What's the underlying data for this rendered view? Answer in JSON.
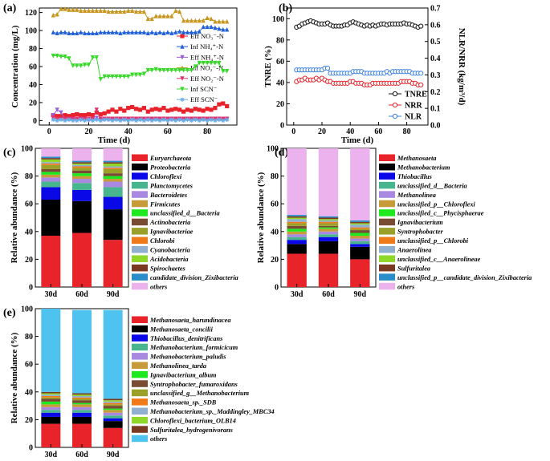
{
  "panels": {
    "a": {
      "label": "(a)",
      "type": "line",
      "xlabel": "Time (d)",
      "ylabel": "Concentration (mg/L)",
      "xlim": [
        -5,
        95
      ],
      "ylim": [
        -5,
        125
      ],
      "xticks": [
        "0",
        "20",
        "40",
        "60",
        "80"
      ],
      "yticks": [
        "0",
        "20",
        "40",
        "60",
        "80",
        "100",
        "120"
      ],
      "x": [
        2,
        4,
        6,
        8,
        10,
        12,
        14,
        16,
        18,
        20,
        22,
        24,
        26,
        28,
        30,
        32,
        34,
        36,
        38,
        40,
        42,
        44,
        46,
        48,
        50,
        52,
        54,
        56,
        58,
        60,
        62,
        64,
        66,
        68,
        70,
        72,
        74,
        76,
        78,
        80,
        82,
        84,
        86,
        88,
        90
      ],
      "series": [
        {
          "name": "Eff NO₃⁻-N",
          "color": "#e8222a",
          "marker": "square",
          "values": [
            6,
            5,
            5,
            6,
            5,
            6,
            7,
            6,
            6,
            7,
            6,
            9,
            7,
            8,
            10,
            12,
            10,
            13,
            11,
            14,
            15,
            13,
            12,
            14,
            10,
            12,
            13,
            12,
            14,
            11,
            12,
            13,
            12,
            10,
            12,
            11,
            13,
            12,
            11,
            13,
            12,
            14,
            18,
            19,
            16
          ]
        },
        {
          "name": "Inf NH₄⁺-N",
          "color": "#2060d8",
          "marker": "triangle-up",
          "values": [
            98,
            97,
            98,
            98,
            97,
            97,
            97,
            98,
            97,
            97,
            97,
            97,
            98,
            98,
            98,
            98,
            98,
            97,
            98,
            98,
            98,
            98,
            98,
            98,
            97,
            98,
            97,
            98,
            97,
            98,
            97,
            98,
            99,
            98,
            98,
            98,
            98,
            99,
            104,
            104,
            104,
            103,
            102,
            101,
            101
          ]
        },
        {
          "name": "Eff NH₄⁺-N",
          "color": "#9b5fd8",
          "marker": "triangle-down",
          "values": [
            6,
            12,
            9,
            2,
            1,
            1,
            1,
            1,
            1,
            0,
            1,
            3,
            1,
            1,
            1,
            1,
            1,
            1,
            1,
            1,
            2,
            1,
            1,
            1,
            1,
            1,
            1,
            1,
            2,
            1,
            1,
            1,
            1,
            1,
            1,
            1,
            1,
            1,
            1,
            1,
            1,
            2,
            1,
            1,
            1
          ]
        },
        {
          "name": "Inf NO₂⁻-N",
          "color": "#c8961e",
          "marker": "triangle-up",
          "values": [
            117,
            118,
            124,
            124,
            123,
            123,
            123,
            122,
            122,
            122,
            122,
            122,
            122,
            122,
            121,
            121,
            121,
            121,
            121,
            122,
            122,
            121,
            121,
            121,
            113,
            113,
            116,
            116,
            116,
            116,
            116,
            122,
            121,
            111,
            111,
            111,
            111,
            111,
            111,
            114,
            113,
            110,
            110,
            110,
            110
          ]
        },
        {
          "name": "Eff NO₂⁻-N",
          "color": "#e0306e",
          "marker": "triangle-down",
          "values": [
            3,
            2,
            2,
            2,
            2,
            2,
            2,
            2,
            2,
            2,
            2,
            12,
            2,
            2,
            2,
            2,
            2,
            2,
            2,
            2,
            2,
            2,
            2,
            2,
            2,
            2,
            2,
            2,
            2,
            2,
            2,
            2,
            2,
            2,
            2,
            2,
            2,
            2,
            2,
            2,
            2,
            2,
            2,
            2,
            2
          ]
        },
        {
          "name": "Inf SCN⁻",
          "color": "#38d82a",
          "marker": "triangle-down",
          "values": [
            72,
            72,
            71,
            71,
            69,
            61,
            61,
            61,
            62,
            62,
            70,
            70,
            46,
            49,
            49,
            49,
            49,
            49,
            49,
            49,
            51,
            51,
            51,
            52,
            56,
            56,
            57,
            56,
            56,
            56,
            56,
            56,
            56,
            56,
            56,
            56,
            60,
            64,
            64,
            64,
            64,
            64,
            64,
            55,
            55
          ]
        },
        {
          "name": "Eff SCN⁻",
          "color": "#6aaee8",
          "marker": "star",
          "values": [
            1,
            0,
            1,
            0,
            1,
            0,
            0,
            1,
            0,
            1,
            0,
            1,
            0,
            1,
            1,
            0,
            1,
            0,
            1,
            0,
            1,
            0,
            1,
            0,
            1,
            0,
            1,
            0,
            1,
            0,
            1,
            0,
            1,
            0,
            1,
            0,
            1,
            0,
            1,
            0,
            1,
            0,
            1,
            0,
            1
          ]
        }
      ]
    },
    "b": {
      "label": "(b)",
      "type": "line",
      "xlabel": "Time (d)",
      "ylabel": "TNRE (%)",
      "y2label": "NLR/NRR (kg/m³/d)",
      "xlim": [
        -5,
        95
      ],
      "ylim": [
        0,
        110
      ],
      "y2lim": [
        0,
        0.7
      ],
      "xticks": [
        "0",
        "20",
        "40",
        "60",
        "80"
      ],
      "yticks": [
        "0",
        "20",
        "40",
        "60",
        "80",
        "100"
      ],
      "y2ticks": [
        "0.0",
        "0.1",
        "0.2",
        "0.3",
        "0.4",
        "0.5",
        "0.6",
        "0.7"
      ],
      "x": [
        2,
        4,
        6,
        8,
        10,
        12,
        14,
        16,
        18,
        20,
        22,
        24,
        26,
        28,
        30,
        32,
        34,
        36,
        38,
        40,
        42,
        44,
        46,
        48,
        50,
        52,
        54,
        56,
        58,
        60,
        62,
        64,
        66,
        68,
        70,
        72,
        74,
        76,
        78,
        80,
        82,
        84,
        86,
        88,
        90
      ],
      "series": [
        {
          "name": "TNRE",
          "axis": "left",
          "color": "#111111",
          "values": [
            92,
            93,
            95,
            96,
            97,
            98,
            97,
            96,
            95,
            95,
            95,
            96,
            94,
            93,
            93,
            93,
            93,
            94,
            94,
            96,
            97,
            96,
            95,
            94,
            93,
            94,
            93,
            94,
            93,
            94,
            95,
            95,
            94,
            95,
            95,
            95,
            95,
            95,
            96,
            95,
            95,
            94,
            93,
            92,
            93
          ]
        },
        {
          "name": "NRR",
          "axis": "right",
          "color": "#e8222a",
          "values": [
            0.26,
            0.27,
            0.27,
            0.28,
            0.27,
            0.27,
            0.27,
            0.28,
            0.27,
            0.28,
            0.27,
            0.26,
            0.26,
            0.25,
            0.25,
            0.25,
            0.25,
            0.25,
            0.25,
            0.26,
            0.26,
            0.25,
            0.25,
            0.25,
            0.24,
            0.24,
            0.24,
            0.25,
            0.25,
            0.25,
            0.25,
            0.25,
            0.25,
            0.25,
            0.25,
            0.25,
            0.25,
            0.26,
            0.26,
            0.26,
            0.26,
            0.25,
            0.25,
            0.24,
            0.24
          ]
        },
        {
          "name": "NLR",
          "axis": "right",
          "color": "#3a80e0",
          "values": [
            0.33,
            0.33,
            0.33,
            0.33,
            0.33,
            0.33,
            0.33,
            0.33,
            0.33,
            0.33,
            0.34,
            0.34,
            0.31,
            0.31,
            0.31,
            0.31,
            0.31,
            0.31,
            0.31,
            0.31,
            0.32,
            0.32,
            0.32,
            0.32,
            0.31,
            0.31,
            0.31,
            0.31,
            0.31,
            0.31,
            0.31,
            0.31,
            0.32,
            0.31,
            0.32,
            0.32,
            0.32,
            0.32,
            0.32,
            0.32,
            0.32,
            0.31,
            0.31,
            0.31,
            0.31
          ]
        }
      ]
    },
    "c": {
      "label": "(c)",
      "type": "stacked-bar",
      "ylabel": "Relative abundance (%)",
      "ylim": [
        0,
        100
      ],
      "yticks": [
        "0",
        "20",
        "40",
        "60",
        "80",
        "100"
      ],
      "categories": [
        "30d",
        "60d",
        "90d"
      ],
      "series": [
        {
          "name": "Euryarchaeota",
          "color": "#e8232a",
          "values": [
            37,
            39,
            34
          ]
        },
        {
          "name": "Proteobacteria",
          "color": "#000000",
          "values": [
            26,
            23,
            22
          ]
        },
        {
          "name": "Chloroflexi",
          "color": "#0b08e8",
          "values": [
            9,
            8,
            9
          ]
        },
        {
          "name": "Planctomycetes",
          "color": "#47b58e",
          "values": [
            4,
            5,
            7
          ]
        },
        {
          "name": "Bacteroidetes",
          "color": "#a888e0",
          "values": [
            3,
            3,
            4
          ]
        },
        {
          "name": "Firmicutes",
          "color": "#c89b3a",
          "values": [
            2,
            2,
            2
          ]
        },
        {
          "name": "unclassified_d__Bacteria",
          "color": "#1ee81e",
          "values": [
            2,
            2,
            2
          ]
        },
        {
          "name": "Actinobacteria",
          "color": "#7a4b33",
          "values": [
            2,
            2,
            2
          ]
        },
        {
          "name": "Ignavibacteriae",
          "color": "#9aa028",
          "values": [
            3,
            2,
            3
          ]
        },
        {
          "name": "Chlorobi",
          "color": "#f07a1a",
          "values": [
            1,
            1,
            1
          ]
        },
        {
          "name": "Cyanobacteria",
          "color": "#8fb0d0",
          "values": [
            1,
            1,
            1
          ]
        },
        {
          "name": "Acidobacteria",
          "color": "#8fd82a",
          "values": [
            2,
            1,
            2
          ]
        },
        {
          "name": "Spirochaetes",
          "color": "#7a3a22",
          "values": [
            1,
            1,
            1
          ]
        },
        {
          "name": "candidate_division_Zixibacteria",
          "color": "#2a8cc8",
          "values": [
            1,
            1,
            1
          ]
        },
        {
          "name": "others",
          "color": "#ebb2ee",
          "values": [
            6,
            9,
            9
          ]
        }
      ]
    },
    "d": {
      "label": "(d)",
      "type": "stacked-bar",
      "ylabel": "Relative abundance (%)",
      "ylim": [
        0,
        100
      ],
      "yticks": [
        "0",
        "20",
        "40",
        "60",
        "80",
        "100"
      ],
      "categories": [
        "30d",
        "60d",
        "90d"
      ],
      "series": [
        {
          "name": "Methanosaeta",
          "color": "#e8232a",
          "values": [
            24,
            24,
            20
          ]
        },
        {
          "name": "Methanobacterium",
          "color": "#000000",
          "values": [
            7,
            9,
            9
          ]
        },
        {
          "name": "Thiobacillus",
          "color": "#0b08e8",
          "values": [
            3,
            3,
            2
          ]
        },
        {
          "name": "unclassified_d__Bacteria",
          "color": "#47b58e",
          "values": [
            2,
            2,
            2
          ]
        },
        {
          "name": "Methanolinea",
          "color": "#a888e0",
          "values": [
            2,
            2,
            2
          ]
        },
        {
          "name": "unclassified_p__Chloroflexi",
          "color": "#c89b3a",
          "values": [
            2,
            2,
            2
          ]
        },
        {
          "name": "unclassified_c__Phycisphaerae",
          "color": "#1ee81e",
          "values": [
            2,
            1,
            2
          ]
        },
        {
          "name": "Ignavibacterium",
          "color": "#7a4b33",
          "values": [
            2,
            1,
            2
          ]
        },
        {
          "name": "Syntrophobacter",
          "color": "#9aa028",
          "values": [
            2,
            2,
            1
          ]
        },
        {
          "name": "unclassified_p__Chlorobi",
          "color": "#f07a1a",
          "values": [
            1,
            1,
            1
          ]
        },
        {
          "name": "Anaerolinea",
          "color": "#8fb0d0",
          "values": [
            2,
            1,
            2
          ]
        },
        {
          "name": "unclassified_c__Anaerolineae",
          "color": "#8fd82a",
          "values": [
            1,
            1,
            1
          ]
        },
        {
          "name": "Sulfuritalea",
          "color": "#7a3a22",
          "values": [
            1,
            1,
            1
          ]
        },
        {
          "name": "unclassified_p__candidate_division_Zixibacteria",
          "color": "#2a8cc8",
          "values": [
            1,
            1,
            1
          ]
        },
        {
          "name": "others",
          "color": "#ebb2ee",
          "values": [
            48,
            49,
            52
          ]
        }
      ]
    },
    "e": {
      "label": "(e)",
      "type": "stacked-bar",
      "ylabel": "Relative abundance (%)",
      "ylim": [
        0,
        100
      ],
      "yticks": [
        "0",
        "20",
        "40",
        "60",
        "80",
        "100"
      ],
      "categories": [
        "30d",
        "60d",
        "90d"
      ],
      "series": [
        {
          "name": "Methanosaeta_harundinacea",
          "color": "#e8232a",
          "values": [
            17,
            17,
            14
          ]
        },
        {
          "name": "Methanosaeta_concilii",
          "color": "#000000",
          "values": [
            5,
            5,
            5
          ]
        },
        {
          "name": "Thiobacillus_denitrificans",
          "color": "#0b08e8",
          "values": [
            3,
            3,
            2
          ]
        },
        {
          "name": "Methanobacterium_formicicum",
          "color": "#47b58e",
          "values": [
            2,
            2,
            2
          ]
        },
        {
          "name": "Methanobacterium_paludis",
          "color": "#a888e0",
          "values": [
            2,
            2,
            2
          ]
        },
        {
          "name": "Methanolinea_tarda",
          "color": "#c89b3a",
          "values": [
            2,
            2,
            2
          ]
        },
        {
          "name": "Ignavibacterium_album",
          "color": "#1ee81e",
          "values": [
            2,
            1,
            1
          ]
        },
        {
          "name": "Syntrophobacter_fumaroxidans",
          "color": "#7a4b33",
          "values": [
            2,
            2,
            2
          ]
        },
        {
          "name": "unclassified_g__Methanobacterium",
          "color": "#9aa028",
          "values": [
            1,
            1,
            1
          ]
        },
        {
          "name": "Methanosaeta_sp._SDB",
          "color": "#f07a1a",
          "values": [
            1,
            1,
            1
          ]
        },
        {
          "name": "Methanobacterium_sp._Maddingley_MBC34",
          "color": "#8fb0d0",
          "values": [
            1,
            1,
            1
          ]
        },
        {
          "name": "Chloroflexi_bacterium_OLB14",
          "color": "#8fd82a",
          "values": [
            1,
            1,
            1
          ]
        },
        {
          "name": "Sulfuritalea_hydrogenivorans",
          "color": "#7a3a22",
          "values": [
            1,
            1,
            1
          ]
        },
        {
          "name": "others",
          "color": "#4fc3f0",
          "values": [
            60,
            60,
            64
          ]
        }
      ]
    }
  }
}
